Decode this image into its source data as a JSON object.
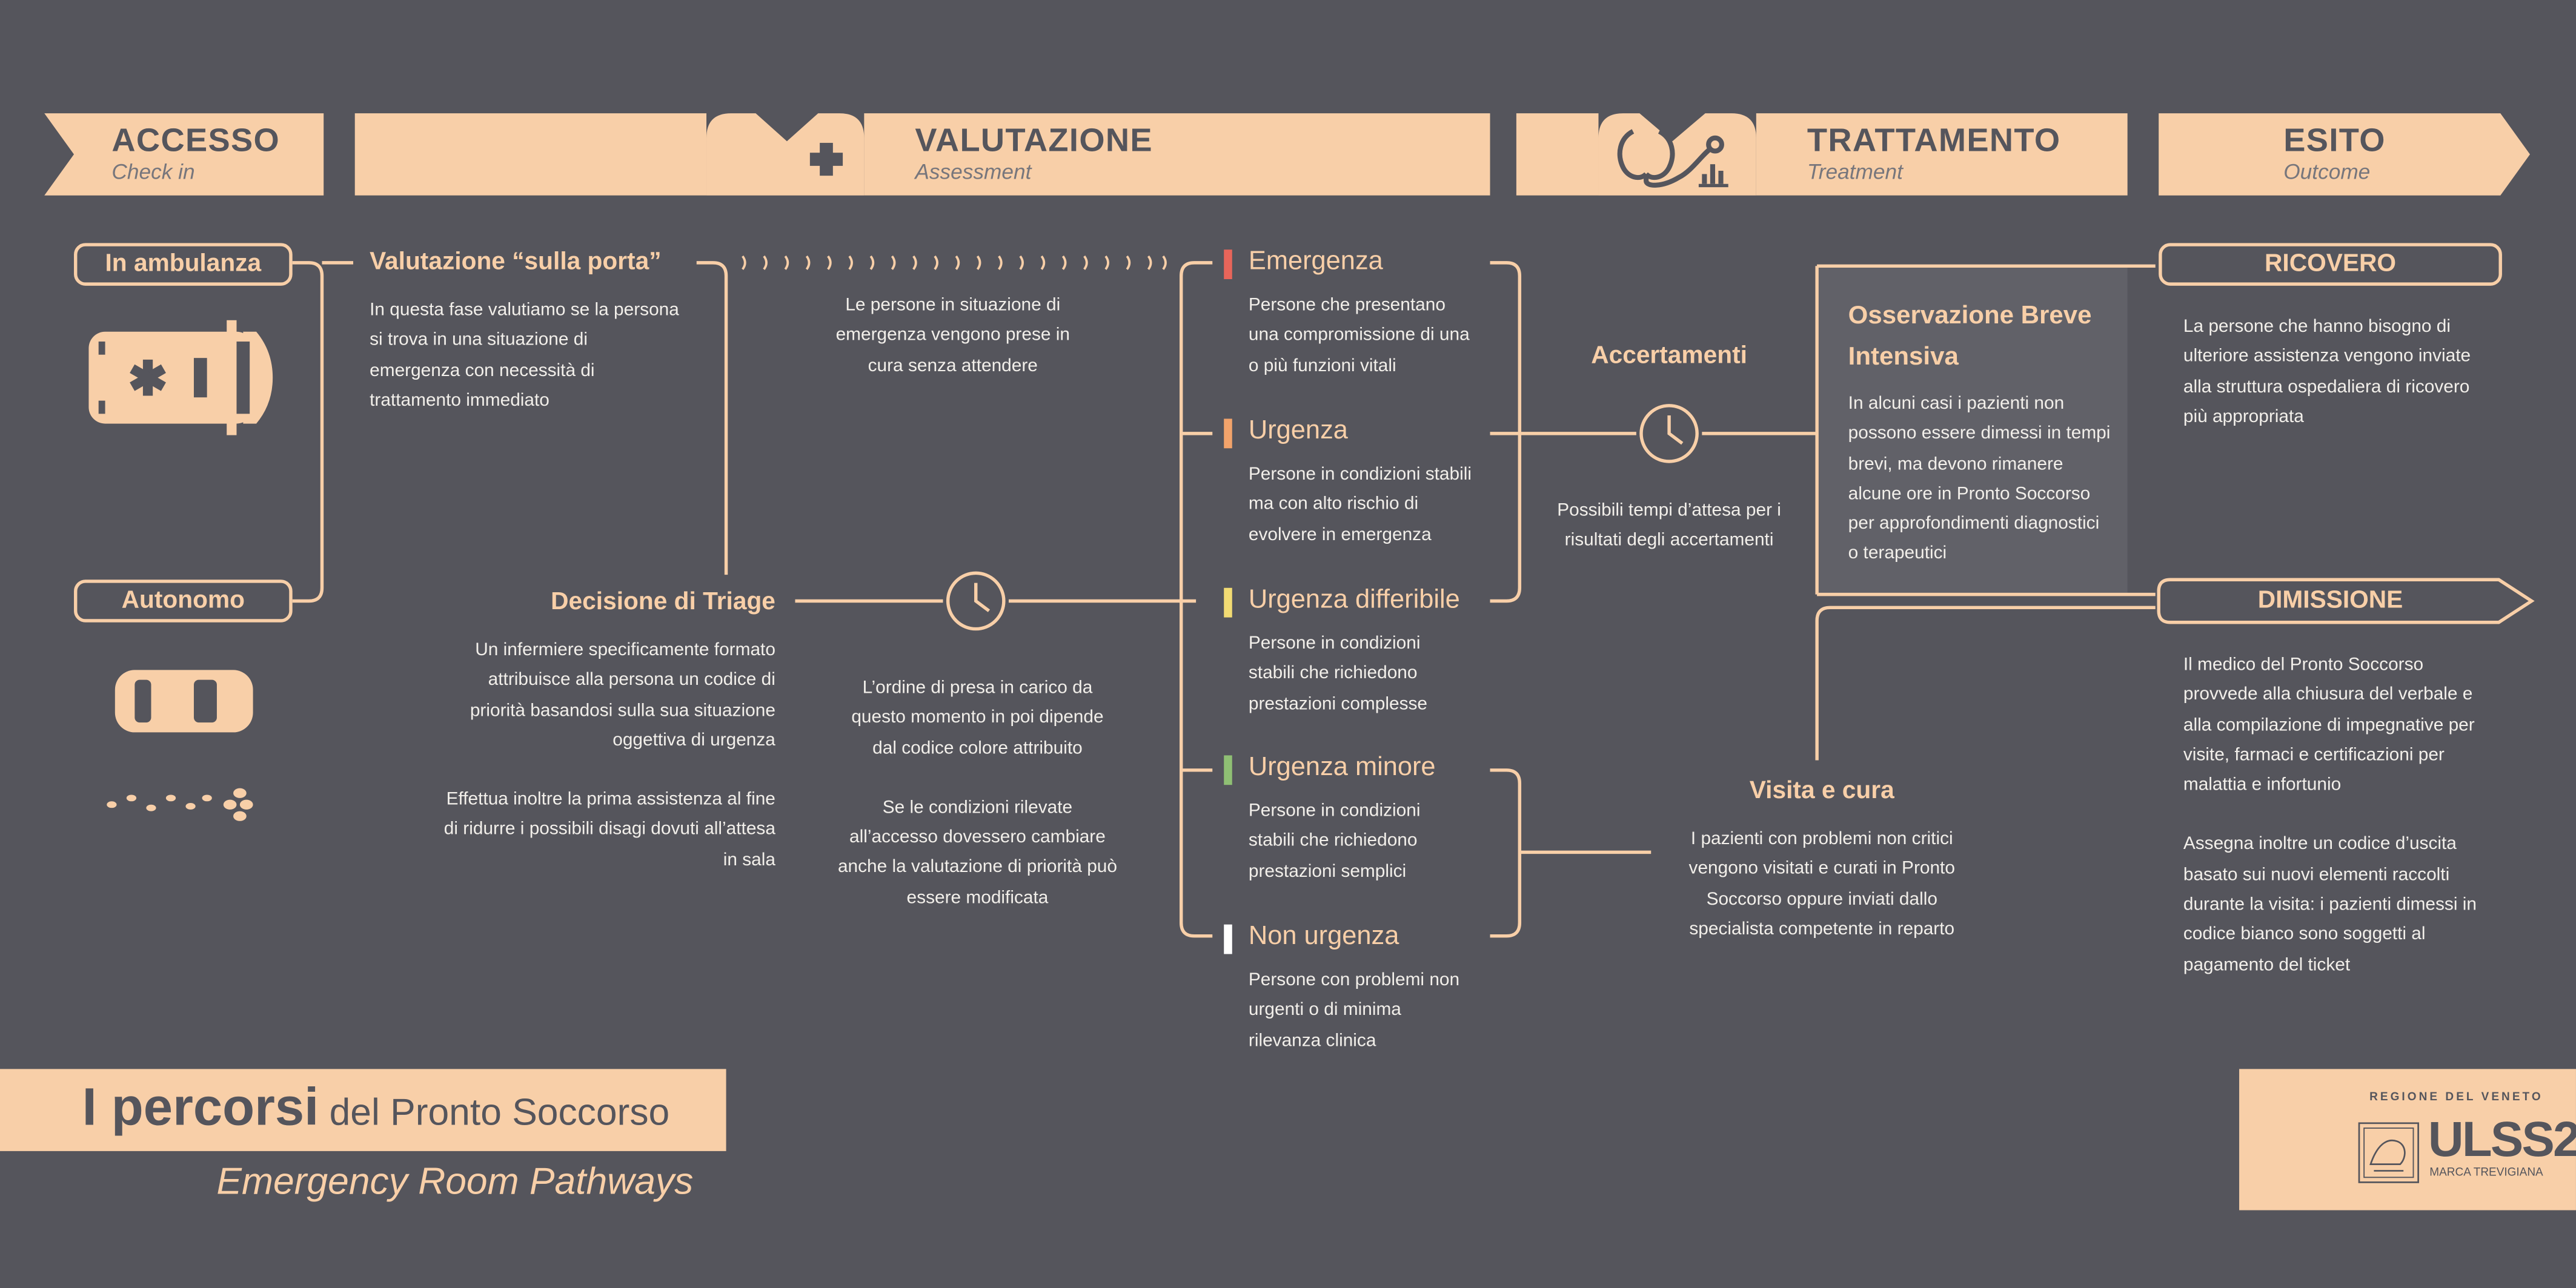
{
  "stages": [
    {
      "title": "ACCESSO",
      "subtitle": "Check in"
    },
    {
      "title": "VALUTAZIONE",
      "subtitle": "Assessment"
    },
    {
      "title": "TRATTAMENTO",
      "subtitle": "Treatment"
    },
    {
      "title": "ESITO",
      "subtitle": "Outcome"
    }
  ],
  "access": {
    "ambulance_label": "In ambulanza",
    "autonomous_label": "Autonomo"
  },
  "door": {
    "title": "Valutazione “sulla porta”",
    "text": "In questa fase valutiamo se la persona si trova in una situazione di emergenza con necessità di trattamento immediato"
  },
  "immediate_text": "Le persone in situazione di emergenza vengono prese in cura senza attendere",
  "triage": {
    "title": "Decisione di Triage",
    "text1": "Un infermiere specificamente formato attribuisce alla persona un codice di priorità basandosi sulla sua situazione oggettiva di urgenza",
    "text2": "Effettua inoltre la prima assistenza al fine di ridurre i possibili disagi dovuti all’attesa in sala"
  },
  "order": {
    "text1": "L’ordine di presa in carico da questo momento in poi dipende dal codice colore attribuito",
    "text2": "Se le condizioni rilevate all’accesso dovessero cambiare anche la valutazione di priorità può essere modificata"
  },
  "levels": [
    {
      "name": "Emergenza",
      "color": "#e8655a",
      "text": "Persone che presentano una compromissione di una o più funzioni vitali"
    },
    {
      "name": "Urgenza",
      "color": "#f2a36b",
      "text": "Persone in condizioni stabili ma con alto rischio di evolvere in emergenza"
    },
    {
      "name": "Urgenza differibile",
      "color": "#f2db73",
      "text": "Persone in condizioni stabili che richiedono prestazioni complesse"
    },
    {
      "name": "Urgenza minore",
      "color": "#8fbf74",
      "text": "Persone in condizioni stabili che richiedono prestazioni semplici"
    },
    {
      "name": "Non urgenza",
      "color": "#ffffff",
      "text": "Persone con problemi non urgenti o di minima rilevanza clinica"
    }
  ],
  "tests": {
    "title": "Accertamenti",
    "text": "Possibili tempi d’attesa per i risultati degli accertamenti"
  },
  "obi": {
    "title": "Osservazione Breve Intensiva",
    "text": "In alcuni casi i pazienti non possono essere dimessi in tempi brevi, ma devono rimanere alcune ore in Pronto Soccorso per approfondimenti diagnostici o terapeutici"
  },
  "visit": {
    "title": "Visita e cura",
    "text": "I pazienti con problemi non critici vengono visitati e curati in Pronto Soccorso oppure inviati dallo specialista competente in reparto"
  },
  "admission": {
    "title": "RICOVERO",
    "text": "La persone che hanno bisogno di ulteriore assistenza vengono inviate alla struttura ospedaliera di ricovero più appropriata"
  },
  "discharge": {
    "title": "DIMISSIONE",
    "text1": "Il medico del Pronto Soccorso provvede alla chiusura del verbale e alla compilazione di impegnative per visite, farmaci e certificazioni per malattia e infortunio",
    "text2": "Assegna inoltre un codice d’uscita basato sui nuovi elementi raccolti durante la visita: i pazienti dimessi in codice bianco sono soggetti al pagamento  del ticket"
  },
  "footer": {
    "title_bold": "I percorsi",
    "title_rest": " del Pronto Soccorso",
    "subtitle": "Emergency Room Pathways"
  },
  "logo": {
    "region": "REGIONE DEL VENETO",
    "name": "ULSS2",
    "sub": "MARCA TREVIGIANA"
  },
  "colors": {
    "background": "#55555c",
    "accent": "#f8cfa8"
  }
}
